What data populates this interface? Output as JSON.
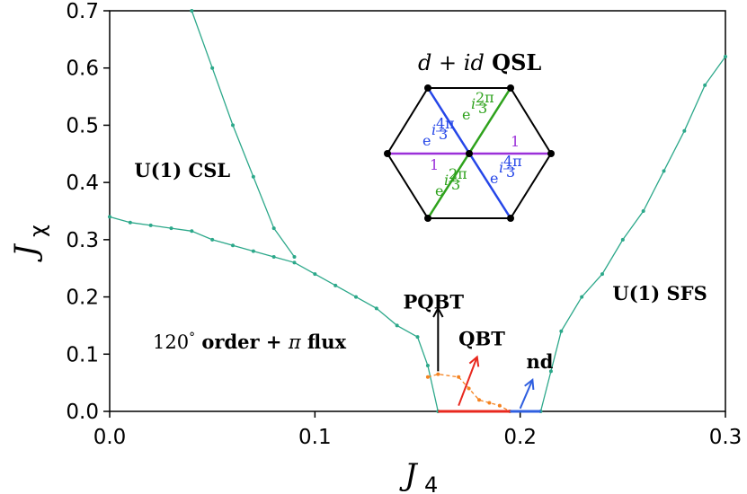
{
  "chart_data": {
    "type": "line",
    "xlabel": "J",
    "xlabel_sub": "4",
    "ylabel": "J",
    "ylabel_sub": "χ",
    "xlim": [
      0.0,
      0.3
    ],
    "ylim": [
      0.0,
      0.7
    ],
    "xticks": [
      "0.0",
      "0.1",
      "0.2",
      "0.3"
    ],
    "xtick_values": [
      0.0,
      0.1,
      0.2,
      0.3
    ],
    "yticks": [
      "0.0",
      "0.1",
      "0.2",
      "0.3",
      "0.4",
      "0.5",
      "0.6",
      "0.7"
    ],
    "ytick_values": [
      0.0,
      0.1,
      0.2,
      0.3,
      0.4,
      0.5,
      0.6,
      0.7
    ],
    "grid": false,
    "series": [
      {
        "color": "#2ca88a",
        "x": [
          0.04,
          0.05,
          0.06,
          0.07,
          0.08,
          0.09
        ],
        "y": [
          0.7,
          0.6,
          0.5,
          0.41,
          0.32,
          0.27
        ]
      },
      {
        "color": "#2ca88a",
        "x": [
          0.0,
          0.01,
          0.02,
          0.03,
          0.04,
          0.05,
          0.06,
          0.07,
          0.08,
          0.09,
          0.1,
          0.11,
          0.12,
          0.13,
          0.14,
          0.15,
          0.155,
          0.16
        ],
        "y": [
          0.34,
          0.33,
          0.325,
          0.32,
          0.315,
          0.3,
          0.29,
          0.28,
          0.27,
          0.26,
          0.24,
          0.22,
          0.2,
          0.18,
          0.15,
          0.13,
          0.08,
          0.0
        ]
      },
      {
        "color": "#2ca88a",
        "x": [
          0.21,
          0.215,
          0.22,
          0.23,
          0.24,
          0.25,
          0.26,
          0.27,
          0.28,
          0.29,
          0.3
        ],
        "y": [
          0.0,
          0.07,
          0.14,
          0.2,
          0.24,
          0.3,
          0.35,
          0.42,
          0.49,
          0.57,
          0.62
        ]
      },
      {
        "color": "#f5821f",
        "style": "dashed",
        "x": [
          0.155,
          0.16,
          0.17,
          0.175,
          0.18,
          0.185,
          0.19,
          0.195
        ],
        "y": [
          0.06,
          0.065,
          0.06,
          0.04,
          0.02,
          0.015,
          0.01,
          0.0
        ]
      },
      {
        "color": "#e8281e",
        "x": [
          0.16,
          0.195
        ],
        "y": [
          0.0,
          0.0
        ]
      },
      {
        "color": "#2f5fe0",
        "x": [
          0.195,
          0.21
        ],
        "y": [
          0.0,
          0.0
        ]
      }
    ],
    "annotations": [
      {
        "text": "U(1) CSL",
        "x": 0.012,
        "y": 0.41,
        "weight": "bold"
      },
      {
        "text": "U(1) SFS",
        "x": 0.245,
        "y": 0.195,
        "weight": "bold"
      },
      {
        "text": "PQBT",
        "x": 0.143,
        "y": 0.18,
        "weight": "bold"
      },
      {
        "text": "QBT",
        "x": 0.17,
        "y": 0.115,
        "weight": "bold"
      },
      {
        "text": "nd",
        "x": 0.203,
        "y": 0.075,
        "weight": "bold"
      }
    ],
    "label_120": {
      "pre": "120",
      "deg": "°",
      "word": " order + ",
      "pi": "π",
      "flux": " flux"
    },
    "arrows": [
      {
        "color": "#000000",
        "x1": 0.16,
        "y1": 0.07,
        "x2": 0.16,
        "y2": 0.18
      },
      {
        "color": "#e8281e",
        "x1": 0.17,
        "y1": 0.01,
        "x2": 0.179,
        "y2": 0.095
      },
      {
        "color": "#2f5fe0",
        "x1": 0.2,
        "y1": 0.005,
        "x2": 0.206,
        "y2": 0.055
      }
    ]
  },
  "inset": {
    "title_d1": "d",
    "title_plus": " + ",
    "title_i": "i",
    "title_d2": "d",
    "title_qsl": " QSL",
    "bond_purple": "1",
    "phase_e": "e",
    "phase_i": "i",
    "phase_2pi": "2π",
    "phase_4pi": "4π",
    "phase_3": "3",
    "colors": {
      "purple": "#9b30d9",
      "green": "#2ea21c",
      "blue": "#2546e8"
    }
  }
}
